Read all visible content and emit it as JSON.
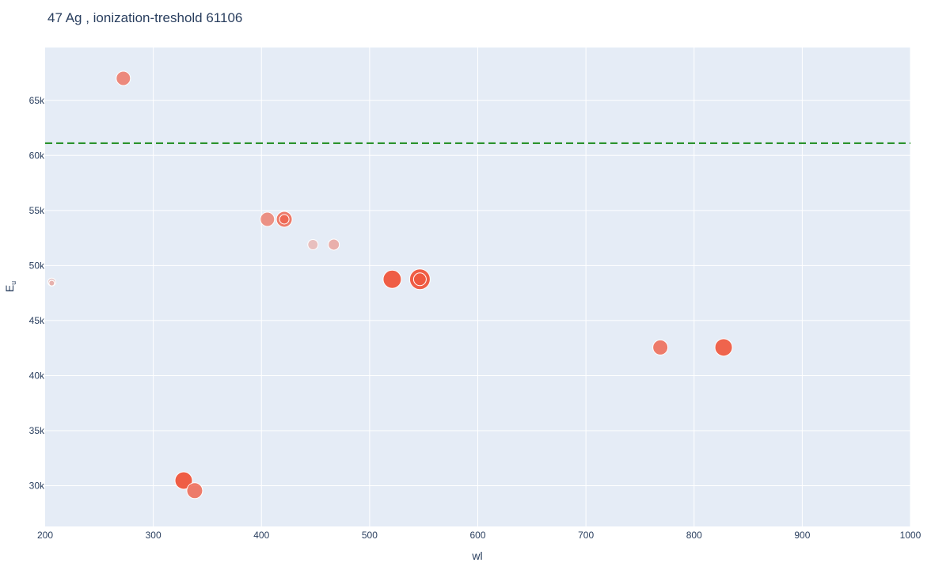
{
  "chart_data": {
    "type": "scatter",
    "title": "47 Ag , ionization-treshold 61106",
    "xlabel": "wl",
    "ylabel_main": "E",
    "ylabel_sub": "u",
    "xlim": [
      200,
      1000
    ],
    "ylim": [
      26300,
      69800
    ],
    "x_ticks": [
      200,
      300,
      400,
      500,
      600,
      700,
      800,
      900,
      1000
    ],
    "x_tick_labels": [
      "200",
      "300",
      "400",
      "500",
      "600",
      "700",
      "800",
      "900",
      "1000"
    ],
    "y_ticks": [
      30000,
      35000,
      40000,
      45000,
      50000,
      55000,
      60000,
      65000
    ],
    "y_tick_labels": [
      "30k",
      "35k",
      "40k",
      "45k",
      "50k",
      "55k",
      "60k",
      "65k"
    ],
    "grid": true,
    "threshold": {
      "value": 61106,
      "color": "#1a8a1a",
      "style": "dashed"
    },
    "marker_color": "#ef553b",
    "plot_background": "#e5ecf6",
    "points": [
      {
        "x": 272.3,
        "y": 67000,
        "size": 18,
        "opacity": 0.65
      },
      {
        "x": 328.1,
        "y": 30470,
        "size": 22,
        "opacity": 0.95
      },
      {
        "x": 338.3,
        "y": 29550,
        "size": 20,
        "opacity": 0.75
      },
      {
        "x": 405.5,
        "y": 54200,
        "size": 18,
        "opacity": 0.6
      },
      {
        "x": 421.1,
        "y": 54200,
        "size": 20,
        "opacity": 0.75
      },
      {
        "x": 421.1,
        "y": 54200,
        "size": 12,
        "opacity": 0.5
      },
      {
        "x": 447.6,
        "y": 51900,
        "size": 13,
        "opacity": 0.3
      },
      {
        "x": 466.9,
        "y": 51900,
        "size": 14,
        "opacity": 0.4
      },
      {
        "x": 206.1,
        "y": 48500,
        "size": 10,
        "opacity": 0.22
      },
      {
        "x": 206.1,
        "y": 48400,
        "size": 7,
        "opacity": 0.22
      },
      {
        "x": 520.9,
        "y": 48750,
        "size": 23,
        "opacity": 0.95
      },
      {
        "x": 546.5,
        "y": 48750,
        "size": 26,
        "opacity": 0.95
      },
      {
        "x": 546.5,
        "y": 48750,
        "size": 16,
        "opacity": 0.6
      },
      {
        "x": 768.8,
        "y": 42560,
        "size": 19,
        "opacity": 0.75
      },
      {
        "x": 827.3,
        "y": 42560,
        "size": 22,
        "opacity": 0.9
      }
    ]
  }
}
